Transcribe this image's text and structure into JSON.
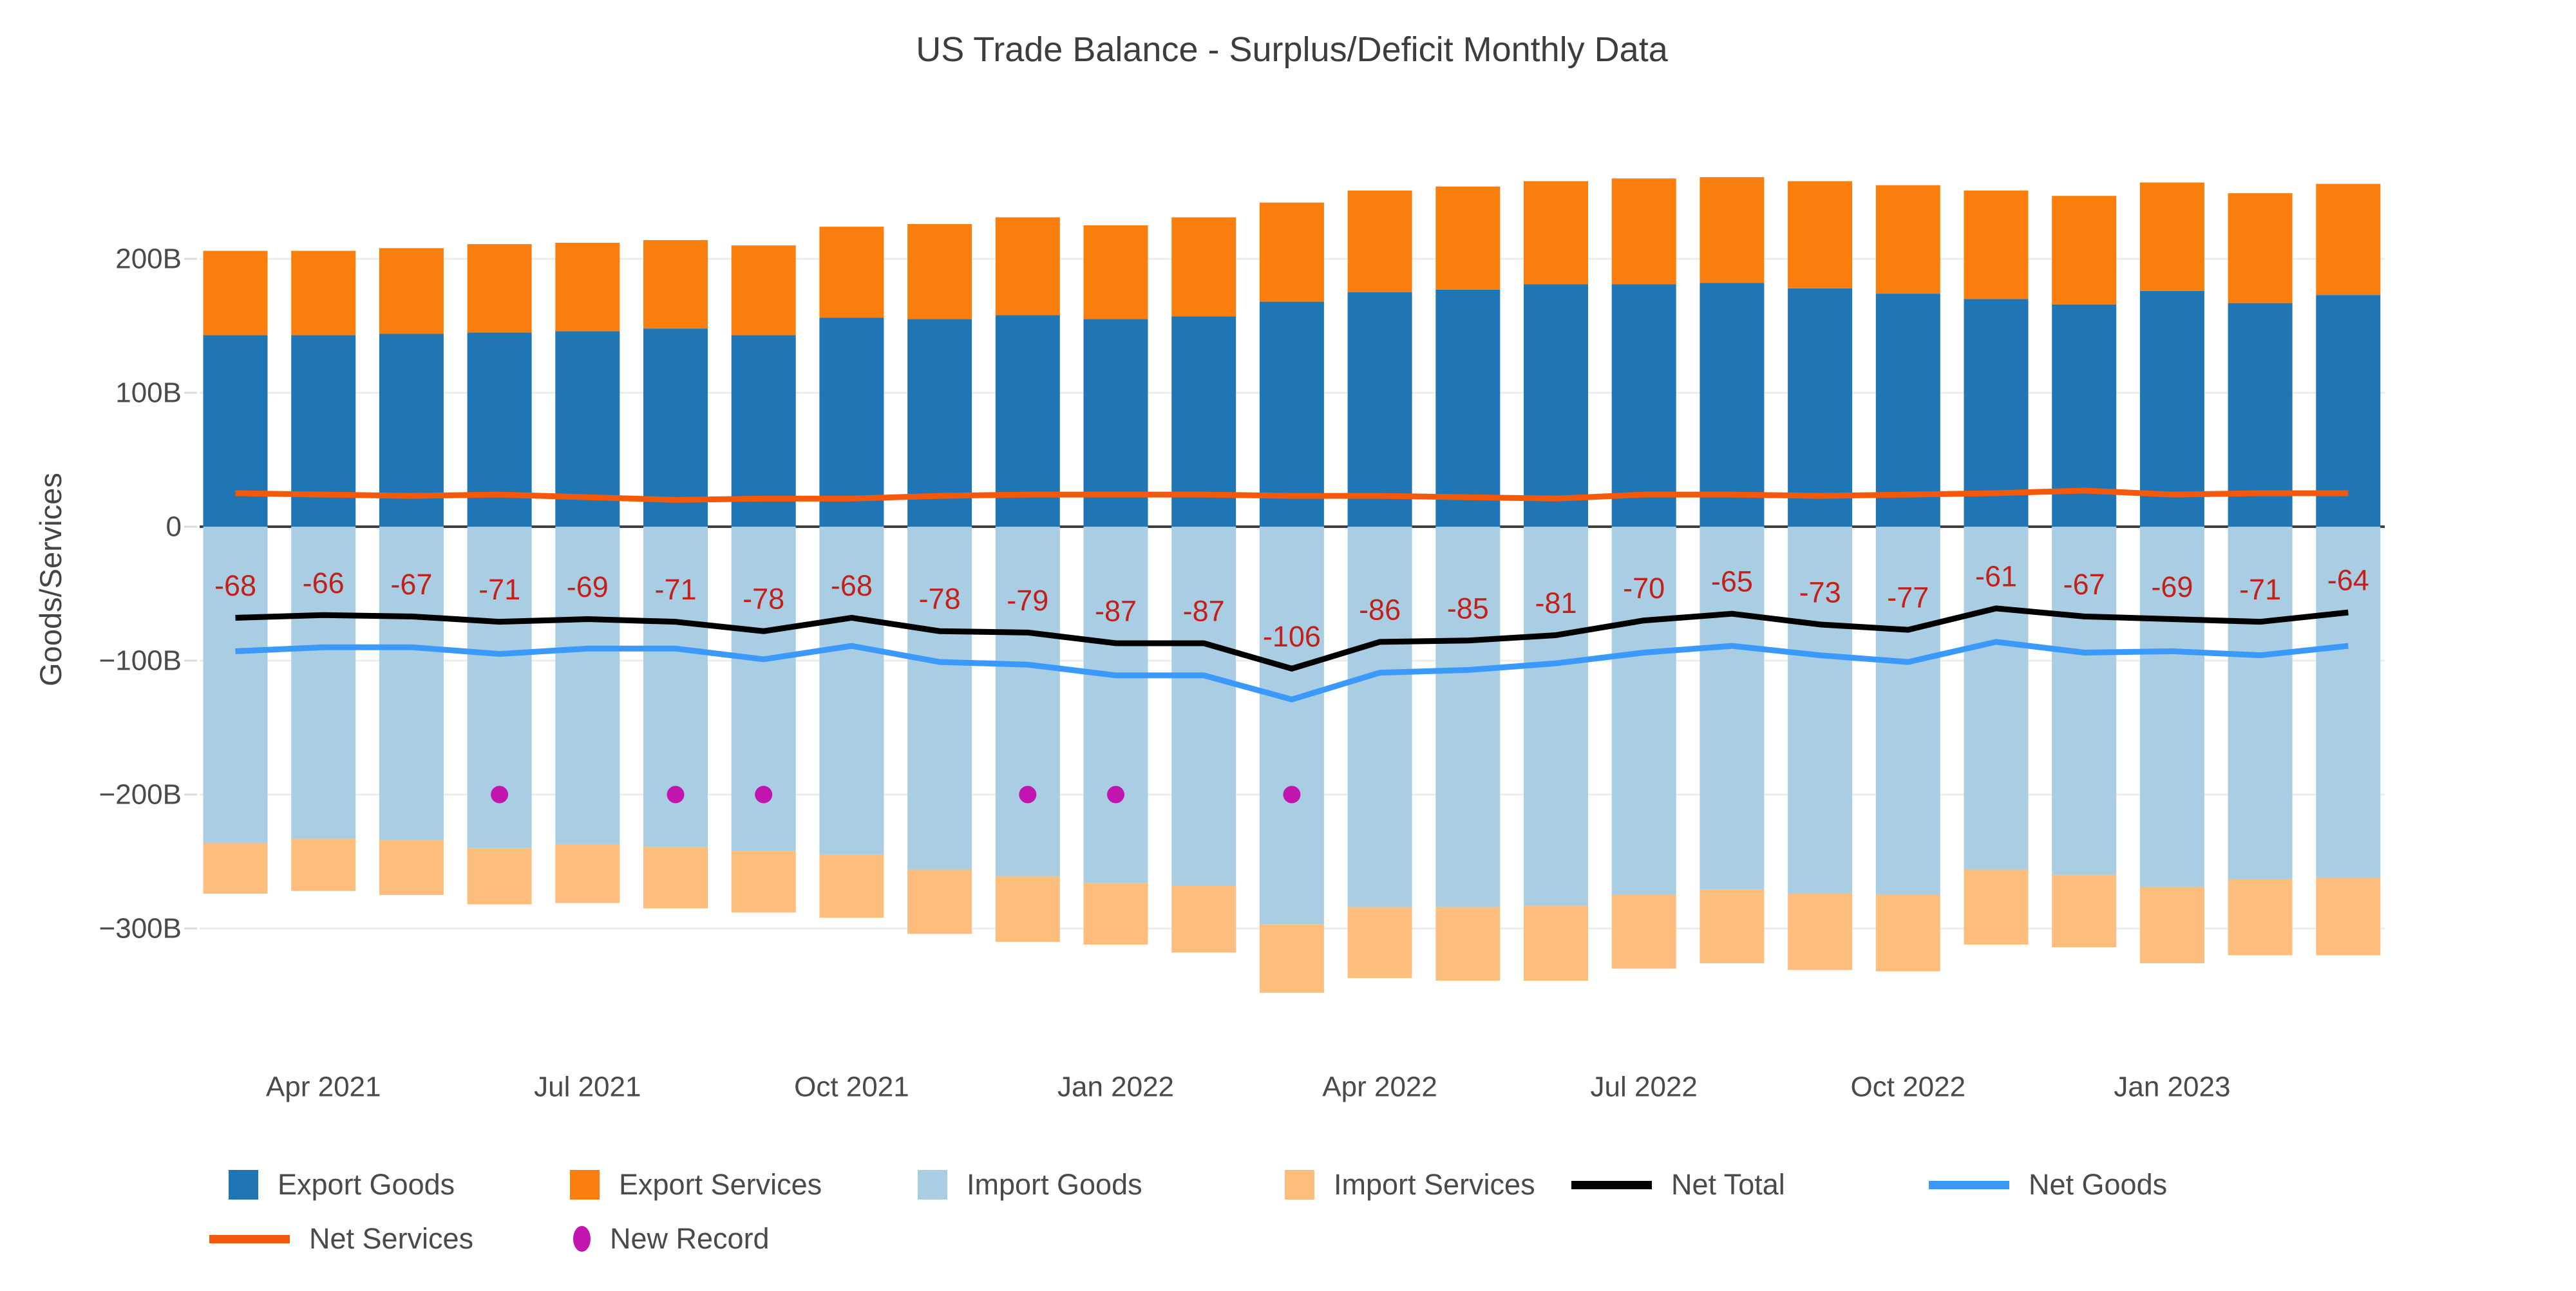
{
  "title": "US Trade Balance - Surplus/Deficit Monthly Data",
  "y_axis": {
    "title": "Goods/Services",
    "tick_labels": [
      "200B",
      "100B",
      "0",
      "−100B",
      "−200B",
      "−300B"
    ],
    "tick_values": [
      200,
      100,
      0,
      -100,
      -200,
      -300
    ]
  },
  "x_axis": {
    "tick_labels": [
      "Apr 2021",
      "Jul 2021",
      "Oct 2021",
      "Jan 2022",
      "Apr 2022",
      "Jul 2022",
      "Oct 2022",
      "Jan 2023"
    ],
    "tick_indices": [
      1,
      4,
      7,
      10,
      13,
      16,
      19,
      22
    ]
  },
  "chart_data": {
    "type": "bar",
    "title": "US Trade Balance - Surplus/Deficit Monthly Data",
    "ylabel": "Goods/Services",
    "xlabel": "",
    "ylim": [
      -376,
      283
    ],
    "grid": true,
    "legend_position": "bottom",
    "units": "billion USD",
    "categories": [
      "Mar 2021",
      "Apr 2021",
      "May 2021",
      "Jun 2021",
      "Jul 2021",
      "Aug 2021",
      "Sep 2021",
      "Oct 2021",
      "Nov 2021",
      "Dec 2021",
      "Jan 2022",
      "Feb 2022",
      "Mar 2022",
      "Apr 2022",
      "May 2022",
      "Jun 2022",
      "Jul 2022",
      "Aug 2022",
      "Sep 2022",
      "Oct 2022",
      "Nov 2022",
      "Dec 2022",
      "Jan 2023",
      "Feb 2023",
      "Mar 2023"
    ],
    "series": [
      {
        "name": "Export Goods",
        "type": "bar",
        "stack": "exports",
        "color": "#2076b4",
        "values": [
          143,
          143,
          144,
          145,
          146,
          148,
          143,
          156,
          155,
          158,
          155,
          157,
          168,
          175,
          177,
          181,
          181,
          182,
          178,
          174,
          170,
          166,
          176,
          167,
          173
        ]
      },
      {
        "name": "Export Services",
        "type": "bar",
        "stack": "exports",
        "color": "#fa7e0e",
        "values": [
          63,
          63,
          64,
          66,
          66,
          66,
          67,
          68,
          71,
          73,
          70,
          74,
          74,
          76,
          77,
          77,
          79,
          79,
          80,
          81,
          81,
          81,
          81,
          82,
          83
        ]
      },
      {
        "name": "Import Goods",
        "type": "bar",
        "stack": "imports",
        "color": "#a9cee3",
        "values": [
          -236,
          -233,
          -234,
          -240,
          -237,
          -239,
          -242,
          -245,
          -256,
          -261,
          -266,
          -268,
          -297,
          -284,
          -284,
          -283,
          -275,
          -271,
          -274,
          -275,
          -256,
          -260,
          -269,
          -263,
          -262
        ]
      },
      {
        "name": "Import Services",
        "type": "bar",
        "stack": "imports",
        "color": "#fdbe7d",
        "values": [
          -38,
          -39,
          -41,
          -42,
          -44,
          -46,
          -46,
          -47,
          -48,
          -49,
          -46,
          -50,
          -51,
          -53,
          -55,
          -56,
          -55,
          -55,
          -57,
          -57,
          -56,
          -54,
          -57,
          -57,
          -58
        ]
      },
      {
        "name": "Net Total",
        "type": "line",
        "color": "#000000",
        "show_labels": true,
        "label_color": "#c22018",
        "values": [
          -68,
          -66,
          -67,
          -71,
          -69,
          -71,
          -78,
          -68,
          -78,
          -79,
          -87,
          -87,
          -106,
          -86,
          -85,
          -81,
          -70,
          -65,
          -73,
          -77,
          -61,
          -67,
          -69,
          -71,
          -64
        ]
      },
      {
        "name": "Net Goods",
        "type": "line",
        "color": "#3b99fc",
        "values": [
          -93,
          -90,
          -90,
          -95,
          -91,
          -91,
          -99,
          -89,
          -101,
          -103,
          -111,
          -111,
          -129,
          -109,
          -107,
          -102,
          -94,
          -89,
          -96,
          -101,
          -86,
          -94,
          -93,
          -96,
          -89
        ]
      },
      {
        "name": "Net Services",
        "type": "line",
        "color": "#f4590b",
        "values": [
          25,
          24,
          23,
          24,
          22,
          20,
          21,
          21,
          23,
          24,
          24,
          24,
          23,
          23,
          22,
          21,
          24,
          24,
          23,
          24,
          25,
          27,
          24,
          25,
          25
        ]
      },
      {
        "name": "New Record",
        "type": "scatter",
        "color": "#c214ae",
        "marker_y": -200,
        "indices": [
          3,
          5,
          6,
          9,
          10,
          12
        ],
        "months": [
          "Jun 2021",
          "Aug 2021",
          "Sep 2021",
          "Dec 2021",
          "Jan 2022",
          "Mar 2022"
        ]
      }
    ]
  },
  "legend": {
    "items": [
      {
        "label": "Export Goods",
        "swatch": "square",
        "color": "#2076b4"
      },
      {
        "label": "Export Services",
        "swatch": "square",
        "color": "#fa7e0e"
      },
      {
        "label": "Import Goods",
        "swatch": "square",
        "color": "#a9cee3"
      },
      {
        "label": "Import Services",
        "swatch": "square",
        "color": "#fdbe7d"
      },
      {
        "label": "Net Total",
        "swatch": "line",
        "color": "#000000"
      },
      {
        "label": "Net Goods",
        "swatch": "line",
        "color": "#3b99fc"
      },
      {
        "label": "Net Services",
        "swatch": "line",
        "color": "#f4590b"
      },
      {
        "label": "New Record",
        "swatch": "dot",
        "color": "#c214ae"
      }
    ]
  },
  "colors": {
    "grid": "#ececec",
    "zero_line": "#3f3f3f",
    "tick_text": "#4a4a4a",
    "title_text": "#3d3d3d",
    "net_label_text": "#c22018"
  }
}
